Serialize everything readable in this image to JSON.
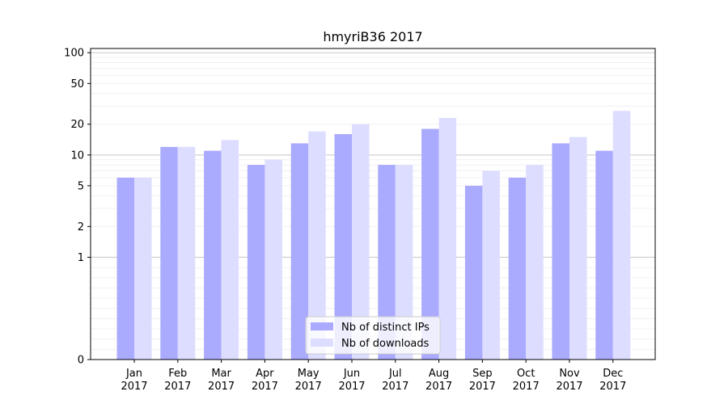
{
  "chart_data": {
    "type": "bar",
    "title": "hmyriB36 2017",
    "xlabel": "",
    "ylabel": "",
    "y_scale": "symlog",
    "ylim": [
      0,
      110
    ],
    "y_ticks": [
      0,
      1,
      2,
      5,
      10,
      20,
      50,
      100
    ],
    "categories": [
      [
        "Jan",
        "2017"
      ],
      [
        "Feb",
        "2017"
      ],
      [
        "Mar",
        "2017"
      ],
      [
        "Apr",
        "2017"
      ],
      [
        "May",
        "2017"
      ],
      [
        "Jun",
        "2017"
      ],
      [
        "Jul",
        "2017"
      ],
      [
        "Aug",
        "2017"
      ],
      [
        "Sep",
        "2017"
      ],
      [
        "Oct",
        "2017"
      ],
      [
        "Nov",
        "2017"
      ],
      [
        "Dec",
        "2017"
      ]
    ],
    "series": [
      {
        "name": "Nb of distinct IPs",
        "color": "#aaaaff",
        "values": [
          6,
          12,
          11,
          8,
          13,
          16,
          8,
          18,
          5,
          6,
          13,
          11
        ]
      },
      {
        "name": "Nb of downloads",
        "color": "#ddddff",
        "values": [
          6,
          12,
          14,
          9,
          17,
          20,
          8,
          23,
          7,
          8,
          15,
          27
        ]
      }
    ],
    "legend": "lower-center",
    "grid": true
  }
}
